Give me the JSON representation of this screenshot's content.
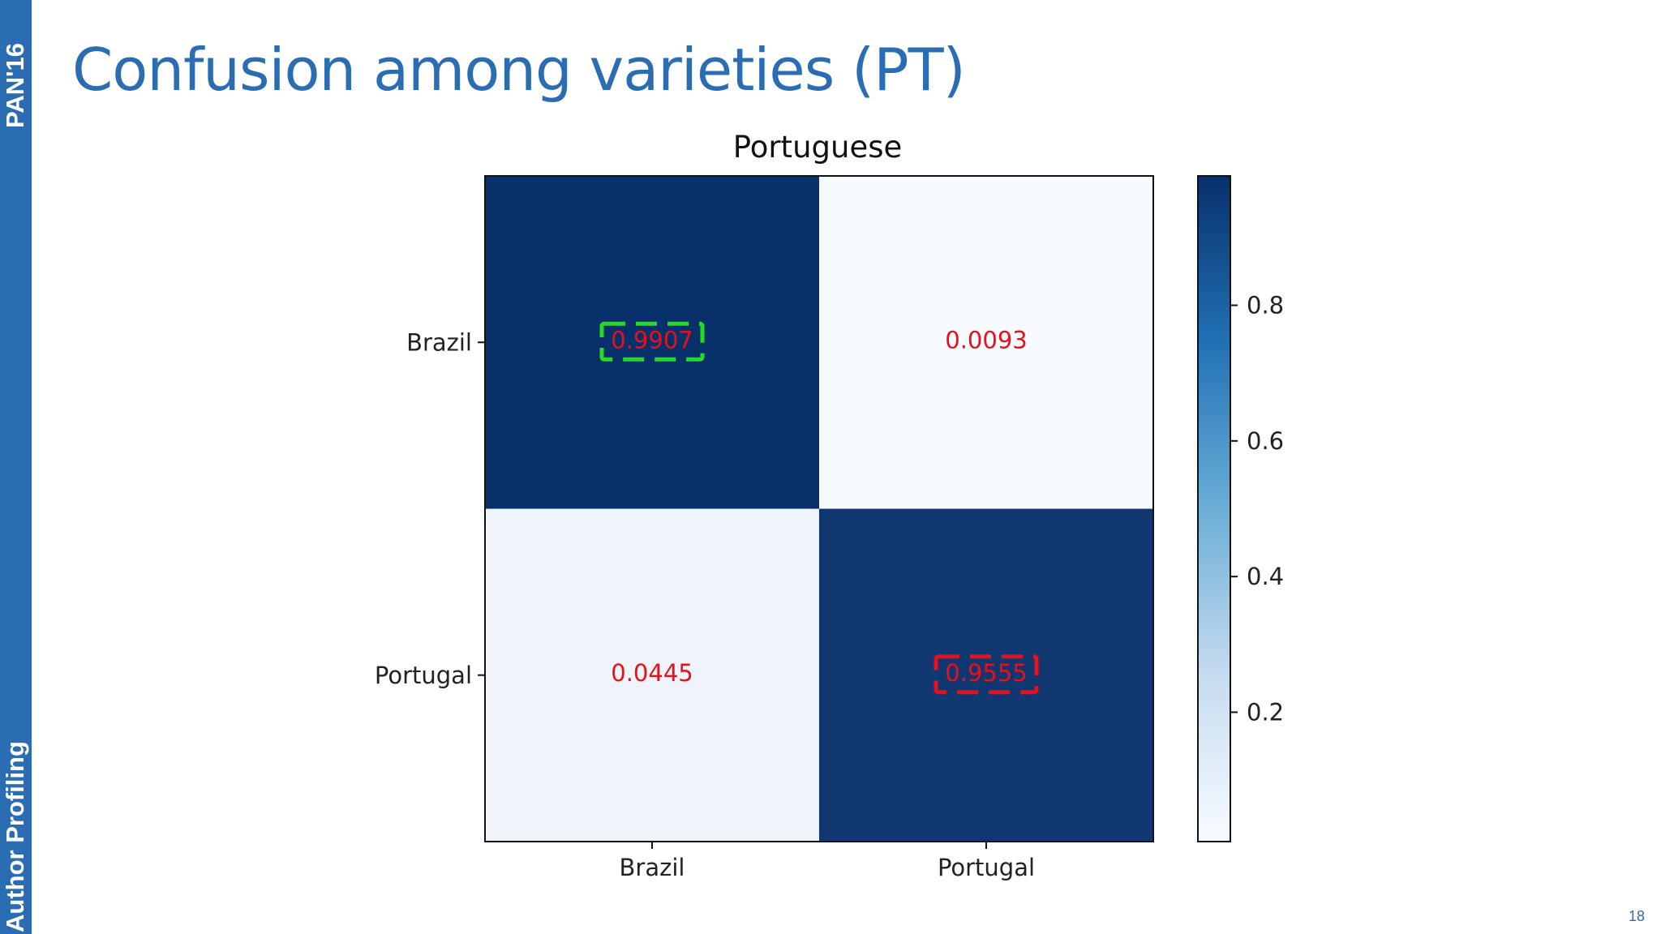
{
  "sidebar": {
    "top_label": "PAN'16",
    "bottom_label": "Author Profiling"
  },
  "slide": {
    "title": "Confusion among varieties (PT)",
    "page_number": "18"
  },
  "colors": {
    "brand_blue": "#2a6db3",
    "cmap_low": "#f7fbff",
    "cmap_high": "#08306b",
    "cell_text": "#e8101a",
    "highlight_correct": "#22dd22",
    "highlight_incorrect": "#e8101a"
  },
  "chart_data": {
    "type": "heatmap",
    "title": "Portuguese",
    "row_labels": [
      "Brazil",
      "Portugal"
    ],
    "col_labels": [
      "Brazil",
      "Portugal"
    ],
    "values": [
      [
        0.9907,
        0.0093
      ],
      [
        0.0445,
        0.9555
      ]
    ],
    "value_labels": [
      [
        "0.9907",
        "0.0093"
      ],
      [
        "0.0445",
        "0.9555"
      ]
    ],
    "colormap": "Blues",
    "colorbar": {
      "range": [
        0.0093,
        0.9907
      ],
      "ticks": [
        0.2,
        0.4,
        0.6,
        0.8
      ],
      "tick_labels": [
        "0.2",
        "0.4",
        "0.6",
        "0.8"
      ]
    },
    "highlights": [
      {
        "row": 0,
        "col": 0,
        "style": "dashed",
        "color": "#22dd22"
      },
      {
        "row": 1,
        "col": 1,
        "style": "dashed",
        "color": "#e8101a"
      }
    ]
  }
}
